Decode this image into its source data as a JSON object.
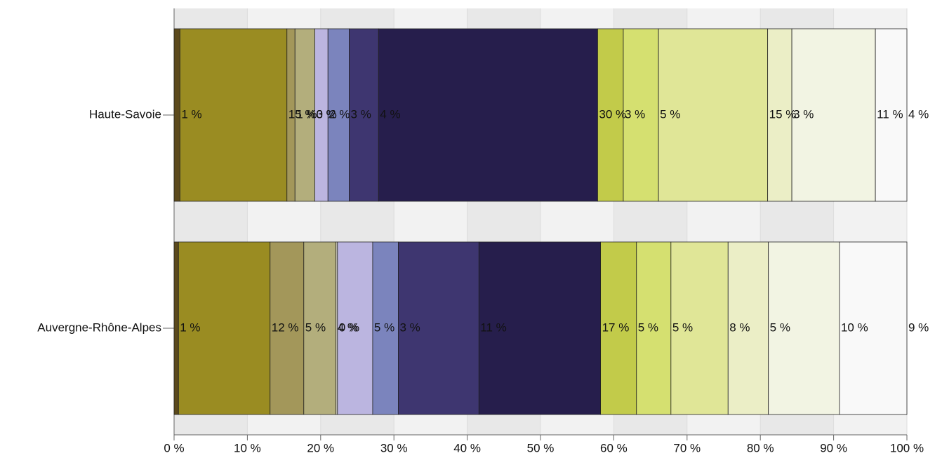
{
  "chart_data": {
    "type": "stacked-bar-horizontal",
    "categories": [
      "Haute-Savoie",
      "Auvergne-Rhône-Alpes"
    ],
    "series": [
      {
        "color": "#5c4a1c",
        "values": [
          0.8,
          0.6
        ],
        "value_labels": [
          "1 %",
          "1 %"
        ]
      },
      {
        "color": "#9a8c22",
        "values": [
          14.6,
          12.5
        ],
        "value_labels": [
          "15 %",
          "12 %"
        ]
      },
      {
        "color": "#a3975a",
        "values": [
          1.1,
          4.6
        ],
        "value_labels": [
          "1 %",
          "5 %"
        ]
      },
      {
        "color": "#b3ae7c",
        "values": [
          2.7,
          4.4
        ],
        "value_labels": [
          "3 %",
          "4 %"
        ]
      },
      {
        "color": "#d8d4c4",
        "values": [
          0,
          0.2
        ],
        "value_labels": [
          "0 %",
          "0 %"
        ]
      },
      {
        "color": "#bbb5e0",
        "values": [
          1.8,
          4.8
        ],
        "value_labels": [
          "2 %",
          "5 %"
        ]
      },
      {
        "color": "#7b84bd",
        "values": [
          2.9,
          3.5
        ],
        "value_labels": [
          "3 %",
          "3 %"
        ]
      },
      {
        "color": "#3e3670",
        "values": [
          4.0,
          11.0
        ],
        "value_labels": [
          "4 %",
          "11 %"
        ]
      },
      {
        "color": "#261e4c",
        "values": [
          29.9,
          16.6
        ],
        "value_labels": [
          "30 %",
          "17 %"
        ]
      },
      {
        "color": "#c2cb4a",
        "values": [
          3.5,
          4.9
        ],
        "value_labels": [
          "3 %",
          "5 %"
        ]
      },
      {
        "color": "#d5e070",
        "values": [
          4.8,
          4.7
        ],
        "value_labels": [
          "5 %",
          "5 %"
        ]
      },
      {
        "color": "#e0e697",
        "values": [
          14.9,
          7.8
        ],
        "value_labels": [
          "15 %",
          "8 %"
        ]
      },
      {
        "color": "#ebeec6",
        "values": [
          3.3,
          5.5
        ],
        "value_labels": [
          "3 %",
          "5 %"
        ]
      },
      {
        "color": "#f2f4e3",
        "values": [
          11.4,
          9.7
        ],
        "value_labels": [
          "11 %",
          "10 %"
        ]
      },
      {
        "color": "#f9f9f9",
        "values": [
          4.3,
          9.2
        ],
        "value_labels": [
          "4 %",
          "9 %"
        ]
      }
    ],
    "xlim": [
      0,
      100
    ],
    "xticks": [
      {
        "value": 0,
        "label": "0 %"
      },
      {
        "value": 10,
        "label": "10 %"
      },
      {
        "value": 20,
        "label": "20 %"
      },
      {
        "value": 30,
        "label": "30 %"
      },
      {
        "value": 40,
        "label": "40 %"
      },
      {
        "value": 50,
        "label": "50 %"
      },
      {
        "value": 60,
        "label": "60 %"
      },
      {
        "value": 70,
        "label": "70 %"
      },
      {
        "value": 80,
        "label": "80 %"
      },
      {
        "value": 90,
        "label": "90 %"
      },
      {
        "value": 100,
        "label": "100 %"
      }
    ],
    "grid": true
  }
}
